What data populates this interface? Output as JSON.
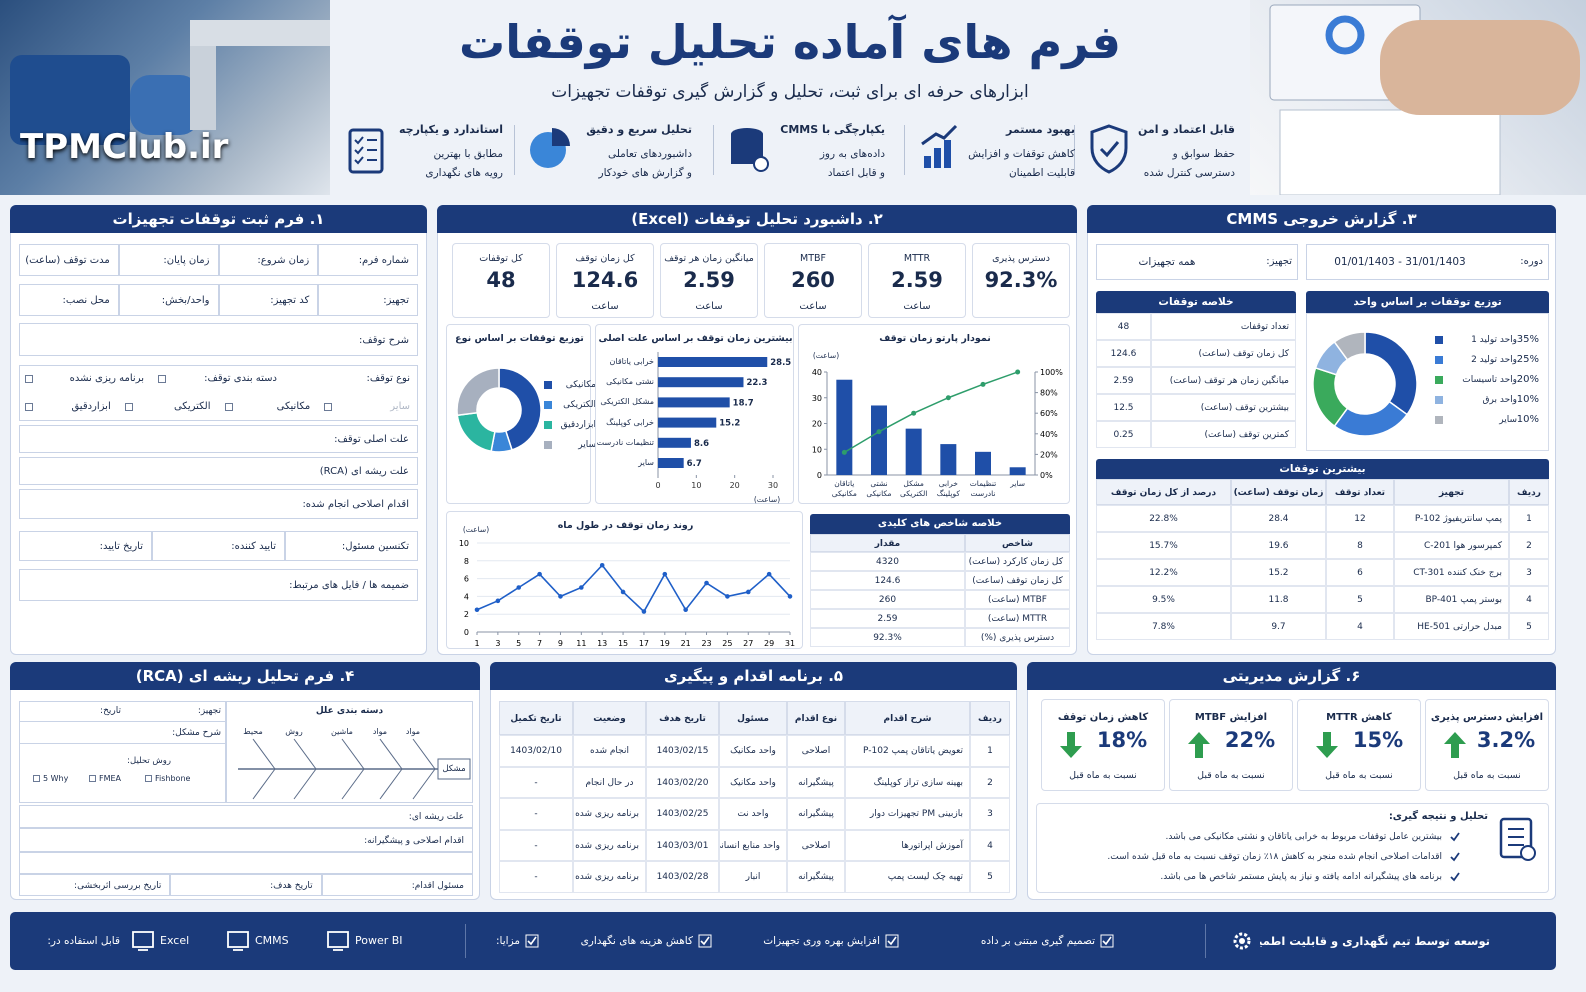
{
  "header": {
    "brand": "TPMClub.ir",
    "title": "فرم های آماده تحلیل توقفات",
    "subtitle": "ابزارهای حرفه ای برای ثبت، تحلیل و گزارش گیری توقفات تجهیزات",
    "features": [
      {
        "title": "قابل اعتماد و امن",
        "lines": [
          "حفظ سوابق و",
          "دسترسی کنترل شده"
        ]
      },
      {
        "title": "بهبود مستمر",
        "lines": [
          "کاهش توقفات و افزایش",
          "قابلیت اطمینان"
        ]
      },
      {
        "title": "یکپارچگی با CMMS",
        "lines": [
          "داده‌های به روز",
          "و قابل اعتماد"
        ]
      },
      {
        "title": "تحلیل سریع و دقیق",
        "lines": [
          "داشبوردهای تعاملی",
          "و گزارش های خودکار"
        ]
      },
      {
        "title": "استاندارد و یکپارچه",
        "lines": [
          "مطابق با بهترین",
          "رویه های نگهداری"
        ]
      }
    ]
  },
  "form1": {
    "title": "۱. فرم ثبت توقفات تجهیزات",
    "rows": [
      [
        "شماره فرم:",
        "زمان شروع:",
        "زمان پایان:",
        "مدت توقف (ساعت)"
      ],
      [
        "تجهیز:",
        "کد تجهیز:",
        "واحد/بخش:",
        "محل نصب:"
      ],
      [
        "شرح توقف:"
      ],
      [
        "نوع توقف:",
        "دسته بندی توقف:",
        "برنامه ریزی نشده"
      ],
      [
        "سایر",
        "مکانیکی",
        "الکتریکی",
        "ابزاردقیق"
      ],
      [
        "علت اصلی توقف:"
      ],
      [
        "علت ریشه ای (RCA)"
      ],
      [
        "اقدام اصلاحی انجام شده:"
      ],
      [
        "تکنسین مسئول:",
        "تایید کننده:",
        "تاریخ تایید:"
      ],
      [
        "ضمیمه ها / فایل های مرتبط:"
      ]
    ]
  },
  "dashboard": {
    "title": "۲. داشبورد تحلیل توقفات (Excel)",
    "kpis": [
      {
        "label": "دسترس پذیری",
        "value": "92.3%"
      },
      {
        "label": "MTTR",
        "value": "2.59",
        "unit": "ساعت"
      },
      {
        "label": "MTBF",
        "value": "260",
        "unit": "ساعت"
      },
      {
        "label": "میانگین زمان هر توقف",
        "value": "2.59",
        "unit": "ساعت"
      },
      {
        "label": "کل زمان توقف",
        "value": "124.6",
        "unit": "ساعت"
      },
      {
        "label": "کل توقفات",
        "value": "48"
      }
    ],
    "type_donut": {
      "type": "pie",
      "title": "توزیع توقفات بر اساس نوع",
      "categories": [
        "مکانیکی",
        "الکتریکی",
        "ابزاردقیق",
        "سایر"
      ],
      "values": [
        45,
        8,
        20,
        27
      ],
      "colors": [
        "#1f4fa8",
        "#3a86d8",
        "#2bb5a0",
        "#a7b0bf"
      ]
    },
    "cause_bars": {
      "type": "bar",
      "title": "بیشترین زمان توقف بر اساس علت اصلی",
      "categories": [
        "خرابی یاتاقان",
        "نشتی مکانیکی",
        "مشکل الکتریکی",
        "خرابی کوپلینگ",
        "تنظیمات نادرست",
        "سایر"
      ],
      "values": [
        28.5,
        22.3,
        18.7,
        15.2,
        8.6,
        6.7
      ],
      "color": "#1f4fa8",
      "xlim": [
        0,
        30
      ],
      "xticks": [
        0,
        10,
        20,
        30
      ],
      "x_label": "(ساعت)"
    },
    "pareto": {
      "type": "bar_line",
      "title": "نمودار پارتو زمان توقف",
      "y_label": "(ساعت)",
      "categories": [
        "یاتاقان مکانیکی",
        "نشتی مکانیکی",
        "مشکل الکتریکی",
        "خرابی کوپلینگ",
        "تنظیمات نادرست",
        "سایر"
      ],
      "series": [
        {
          "values": [
            37,
            27,
            18,
            12,
            9,
            3
          ],
          "color": "#1f4fa8"
        },
        {
          "values": [
            22,
            42,
            60,
            75,
            88,
            100
          ],
          "color": "#2e9d6b",
          "axis": "y2"
        }
      ],
      "ylim": [
        0,
        40
      ],
      "yticks": [
        0,
        10,
        20,
        30,
        40
      ],
      "y2lim": [
        0,
        100
      ],
      "y2ticks": [
        {
          "value": 0,
          "label": "0%"
        },
        {
          "value": 20,
          "label": "20%"
        },
        {
          "value": 40,
          "label": "40%"
        },
        {
          "value": 60,
          "label": "60%"
        },
        {
          "value": 80,
          "label": "80%"
        },
        {
          "value": 100,
          "label": "100%"
        }
      ]
    },
    "trend": {
      "type": "line",
      "title": "روند زمان توقف در طول ماه",
      "y_label": "(ساعت)",
      "x": [
        1,
        3,
        5,
        7,
        9,
        11,
        13,
        15,
        17,
        19,
        21,
        23,
        25,
        27,
        29,
        31
      ],
      "values": [
        2.5,
        3.5,
        5.0,
        6.5,
        4.0,
        5.0,
        7.5,
        4.5,
        2.3,
        6.5,
        2.5,
        5.5,
        4.0,
        4.5,
        6.5,
        4.0
      ],
      "color": "#1f5fc8",
      "xlim": [
        1,
        31
      ],
      "xticks": [
        1,
        3,
        5,
        7,
        9,
        11,
        13,
        15,
        17,
        19,
        21,
        23,
        25,
        27,
        29,
        31
      ],
      "ylim": [
        0,
        10
      ],
      "yticks": [
        0,
        2,
        4,
        6,
        8,
        10
      ],
      "grid": true
    },
    "kpi_table": {
      "title": "خلاصه شاخص های کلیدی",
      "header": [
        "شاخص",
        "مقدار"
      ],
      "rows": [
        [
          "کل زمان کارکرد (ساعت)",
          "4320"
        ],
        [
          "کل زمان توقف (ساعت)",
          "124.6"
        ],
        [
          "MTBF (ساعت)",
          "260"
        ],
        [
          "MTTR (ساعت)",
          "2.59"
        ],
        [
          "دسترس پذیری (%)",
          "92.3%"
        ]
      ]
    }
  },
  "cmms": {
    "title": "۳. گزارش خروجی CMMS",
    "period_label": "دوره:",
    "period": "01/01/1403 - 31/01/1403",
    "equipment_label": "تجهیز:",
    "equipment": "همه تجهیزات",
    "summary": {
      "title": "خلاصه توقفات",
      "rows": [
        [
          "تعداد توقفات",
          "48"
        ],
        [
          "کل زمان توقف (ساعت)",
          "124.6"
        ],
        [
          "میانگین زمان هر توقف (ساعت)",
          "2.59"
        ],
        [
          "بیشترین توقف (ساعت)",
          "12.5"
        ],
        [
          "کمترین توقف (ساعت)",
          "0.25"
        ]
      ]
    },
    "unit_donut": {
      "type": "pie",
      "title": "توزیع توقفات بر اساس واحد",
      "categories": [
        "واحد تولید 1",
        "واحد تولید 2",
        "واحد تاسیسات",
        "واحد برق",
        "سایر"
      ],
      "values": [
        35,
        25,
        20,
        10,
        10
      ],
      "value_labels": [
        "35%",
        "25%",
        "20%",
        "10%",
        "10%"
      ],
      "colors": [
        "#1f4fa8",
        "#3a7bd5",
        "#3aaa5c",
        "#8fb3e0",
        "#b0b5bd"
      ]
    },
    "top": {
      "title": "بیشترین توقفات",
      "header": [
        "ردیف",
        "تجهیز",
        "تعداد توقف",
        "زمان توقف (ساعت)",
        "درصد از کل زمان توقف"
      ],
      "rows": [
        [
          "1",
          "پمپ سانتریفیوژ P-102",
          "12",
          "28.4",
          "22.8%"
        ],
        [
          "2",
          "کمپرسور هوا C-201",
          "8",
          "19.6",
          "15.7%"
        ],
        [
          "3",
          "برج خنک کننده CT-301",
          "6",
          "15.2",
          "12.2%"
        ],
        [
          "4",
          "بوستر پمپ BP-401",
          "5",
          "11.8",
          "9.5%"
        ],
        [
          "5",
          "مبدل حرارتی HE-501",
          "4",
          "9.7",
          "7.8%"
        ]
      ]
    }
  },
  "rca": {
    "title": "۴. فرم تحلیل ریشه ای (RCA)",
    "equipment": "تجهیز:",
    "date": "تاریخ:",
    "problem": "شرح مشکل:",
    "method_label": "روش تحلیل:",
    "methods": [
      "5 Why",
      "FMEA",
      "Fishbone"
    ],
    "fishbone_title": "دسته بندی علل",
    "causes": [
      "محیط",
      "روش",
      "ماشین",
      "مواد",
      "مواد"
    ],
    "head": "مشکل",
    "root_cause": "علت ریشه ای:",
    "corrective": "اقدام اصلاحی و پیشگیرانه:",
    "bottom": [
      "مسئول اقدام:",
      "تاریخ هدف:",
      "تاریخ بررسی اثربخشی:"
    ]
  },
  "actions": {
    "title": "۵. برنامه اقدام و پیگیری",
    "header": [
      "ردیف",
      "شرح اقدام",
      "نوع اقدام",
      "مسئول",
      "تاریخ هدف",
      "وضعیت",
      "تاریخ تکمیل"
    ],
    "rows": [
      [
        "1",
        "تعویض یاتاقان پمپ P-102",
        "اصلاحی",
        "واحد مکانیک",
        "1403/02/15",
        "انجام شده",
        "1403/02/10"
      ],
      [
        "2",
        "بهینه سازی تراز کوپلینگ",
        "پیشگیرانه",
        "واحد مکانیک",
        "1403/02/20",
        "در حال انجام",
        "-"
      ],
      [
        "3",
        "بازبینی PM تجهیزات دوار",
        "پیشگیرانه",
        "واحد نت",
        "1403/02/25",
        "برنامه ریزی شده",
        "-"
      ],
      [
        "4",
        "آموزش اپراتورها",
        "اصلاحی",
        "واحد منابع انسانی",
        "1403/03/01",
        "برنامه ریزی شده",
        "-"
      ],
      [
        "5",
        "تهیه چک لیست پمپ",
        "پیشگیرانه",
        "انبار",
        "1403/02/28",
        "برنامه ریزی شده",
        "-"
      ]
    ]
  },
  "management": {
    "title": "۶. گزارش مدیریتی",
    "kpis": [
      {
        "label": "افزایش دسترس پذیری",
        "value": "3.2%",
        "trend": "up",
        "note": "نسبت به ماه قبل"
      },
      {
        "label": "کاهش MTTR",
        "value": "15%",
        "trend": "down",
        "note": "نسبت به ماه قبل"
      },
      {
        "label": "افزایش MTBF",
        "value": "22%",
        "trend": "up",
        "note": "نسبت به ماه قبل"
      },
      {
        "label": "کاهش زمان توقف",
        "value": "18%",
        "trend": "down",
        "note": "نسبت به ماه قبل"
      }
    ],
    "conclusion_title": "تحلیل و نتیجه گیری:",
    "conclusions": [
      "بیشترین عامل توقفات مربوط به خرابی یاتاقان و نشتی مکانیکی می باشد.",
      "اقدامات اصلاحی انجام شده منجر به کاهش ۱۸٪ زمان توقف نسبت به ماه قبل شده است.",
      "برنامه های پیشگیرانه ادامه یافته و نیاز به پایش مستمر شاخص ها می باشد."
    ]
  },
  "footer": {
    "credit": "توسعه توسط تیم نگهداری و قابلیت اطمینان",
    "benefits": [
      "تصمیم گیری مبتنی بر داده",
      "افزایش بهره وری تجهیزات",
      "کاهش هزینه های نگهداری"
    ],
    "benefits_label": "مزایا:",
    "usage": [
      "Power BI",
      "CMMS",
      "Excel"
    ],
    "usage_label": "قابل استفاده در:"
  }
}
